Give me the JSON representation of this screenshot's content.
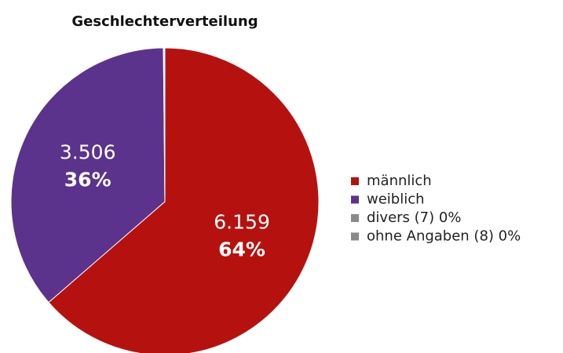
{
  "chart_data": {
    "type": "pie",
    "title": "Geschlechterverteilung",
    "categories": [
      "männlich",
      "weiblich",
      "divers (7) 0%",
      "ohne Angaben (8) 0%"
    ],
    "values": [
      6159,
      3506,
      7,
      8
    ],
    "value_labels": [
      "6.159",
      "3.506",
      null,
      null
    ],
    "share_labels": [
      "64%",
      "36%",
      null,
      null
    ],
    "colors": [
      "#b5120f",
      "#5b338c",
      "#8a8a8a",
      "#8a8a8a"
    ],
    "legend": "right"
  }
}
